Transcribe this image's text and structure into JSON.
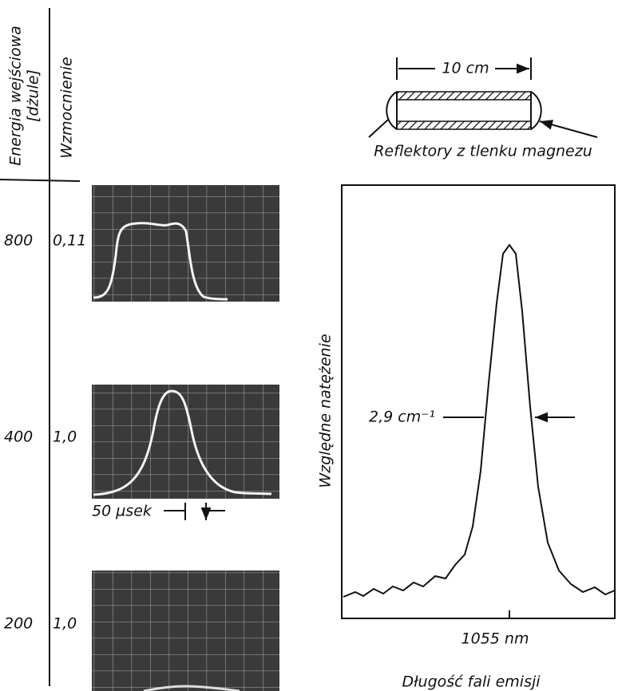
{
  "table": {
    "headers": {
      "energy": [
        "Energia wejściowa",
        "[dżule]"
      ],
      "gain": "Wzmocnienie"
    },
    "rows": [
      [
        "800",
        "0,11"
      ],
      [
        "400",
        "1,0"
      ],
      [
        "200",
        "1,0"
      ]
    ],
    "time_scale": "50 µsek"
  },
  "rod": {
    "length": "10 cm",
    "caption": "Reflektory z tlenku magnezu"
  },
  "spectrum": {
    "y_label": "Względne natężenie",
    "width_label": "2,9 cm⁻¹",
    "x_tick": "1055 nm",
    "x_label": "Długość fali emisji"
  }
}
